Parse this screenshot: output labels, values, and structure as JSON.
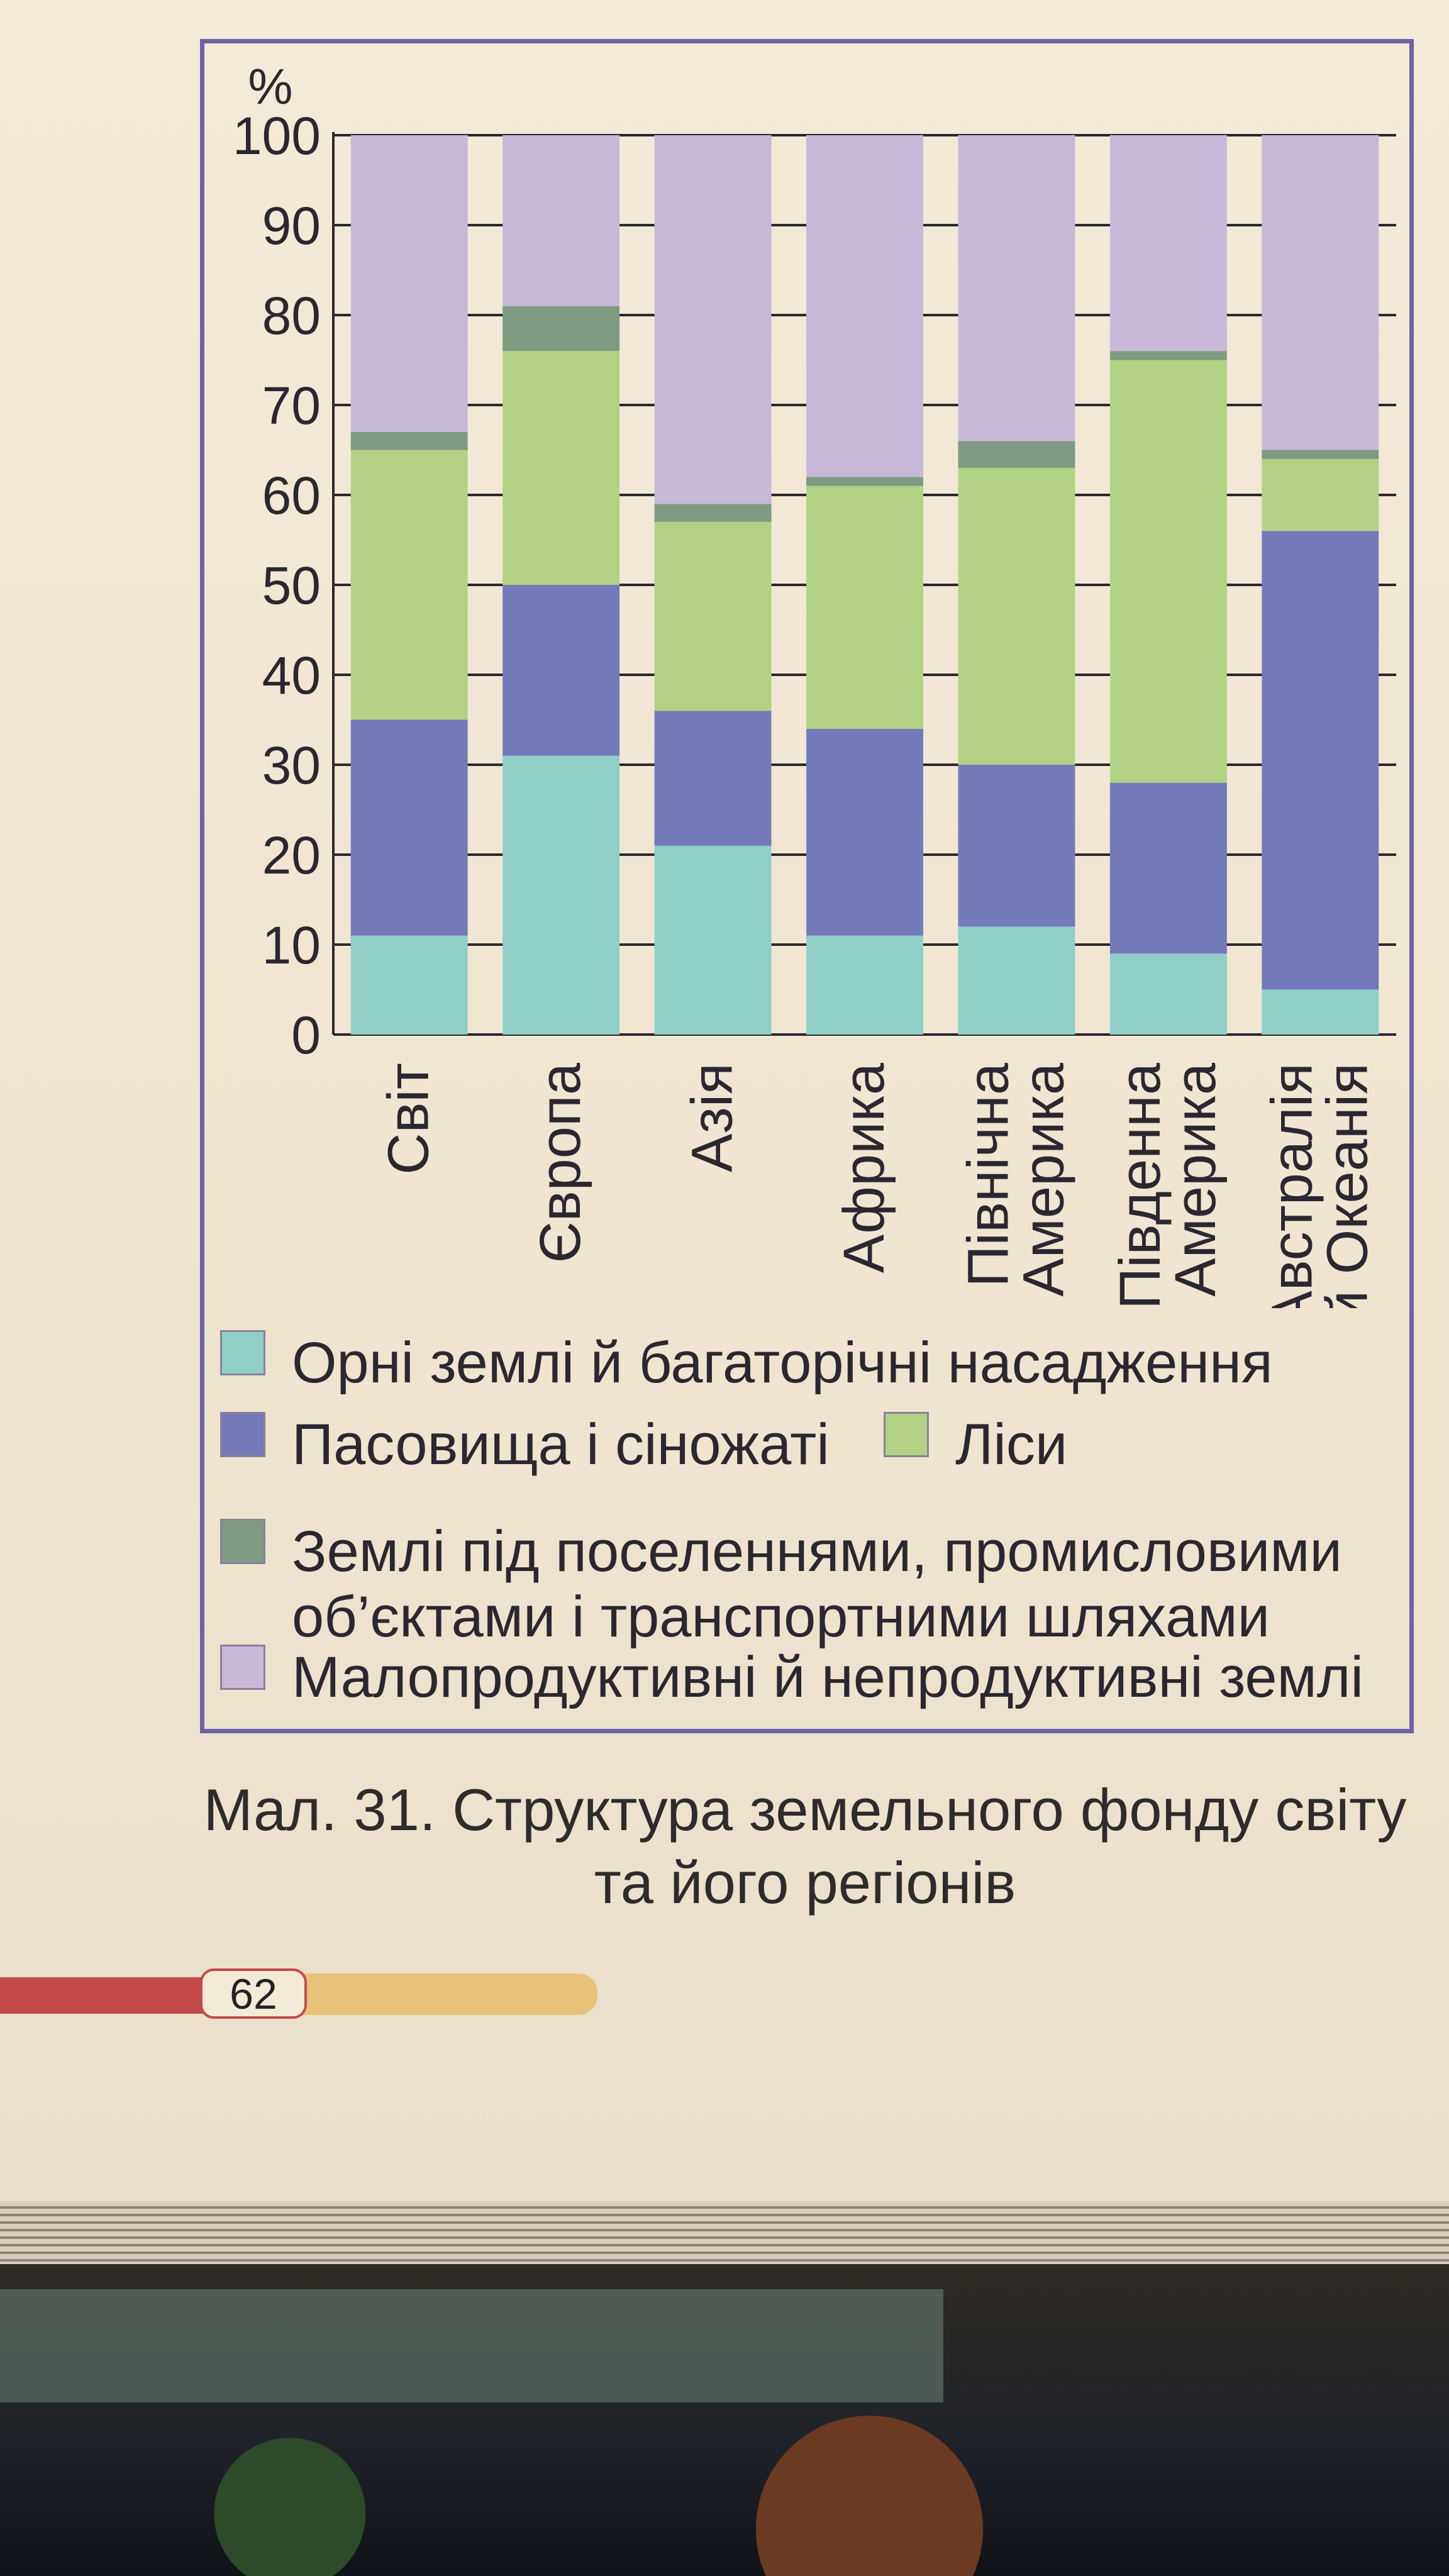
{
  "chart_data": {
    "type": "stacked-bar",
    "ylabel": "%",
    "ylim": [
      0,
      100
    ],
    "yticks": [
      0,
      10,
      20,
      30,
      40,
      50,
      60,
      70,
      80,
      90,
      100
    ],
    "grid": "horizontal",
    "legend_position": "bottom",
    "categories": [
      "Світ",
      "Європа",
      "Азія",
      "Африка",
      "Північна\nАмерика",
      "Південна\nАмерика",
      "Австралія\nй Океанія"
    ],
    "series": [
      {
        "name": "Орні землі й багаторічні насадження",
        "color": "#8fcfc8",
        "values": [
          11,
          31,
          21,
          11,
          12,
          9,
          5
        ]
      },
      {
        "name": "Пасовища і сіножаті",
        "color": "#7479b9",
        "values": [
          24,
          19,
          15,
          23,
          18,
          19,
          51
        ]
      },
      {
        "name": "Ліси",
        "color": "#b2d184",
        "values": [
          30,
          26,
          21,
          27,
          33,
          47,
          8
        ]
      },
      {
        "name": "Землі під поселеннями, промисловими\nоб’єктами і транспортними шляхами",
        "color": "#7f9c82",
        "values": [
          2,
          5,
          2,
          1,
          3,
          1,
          1
        ]
      },
      {
        "name": "Малопродуктивні й непродуктивні землі",
        "color": "#c6b8d6",
        "values": [
          33,
          19,
          41,
          38,
          34,
          24,
          35
        ]
      }
    ]
  },
  "caption": "Мал. 31. Структура земельного фонду світу\nта його регіонів",
  "page_number": "62"
}
